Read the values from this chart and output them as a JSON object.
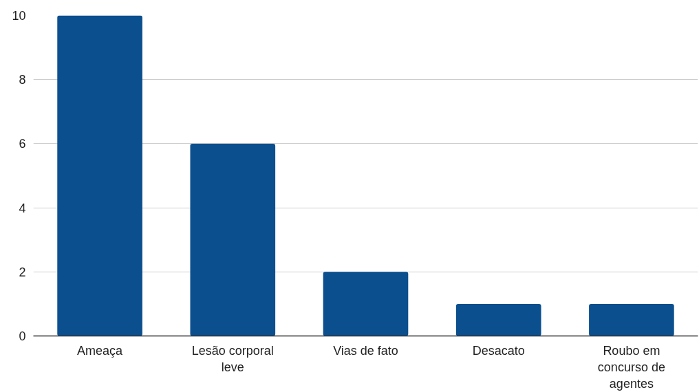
{
  "chart_data": {
    "type": "bar",
    "categories": [
      "Ameaça",
      "Lesão corporal leve",
      "Vias de fato",
      "Desacato",
      "Roubo em concurso de agentes"
    ],
    "values": [
      10,
      6,
      2,
      1,
      1
    ],
    "color": "#0b4f8f",
    "ylim": [
      0,
      10
    ],
    "yticks": [
      0,
      2,
      4,
      6,
      8,
      10
    ],
    "grid": "y"
  }
}
